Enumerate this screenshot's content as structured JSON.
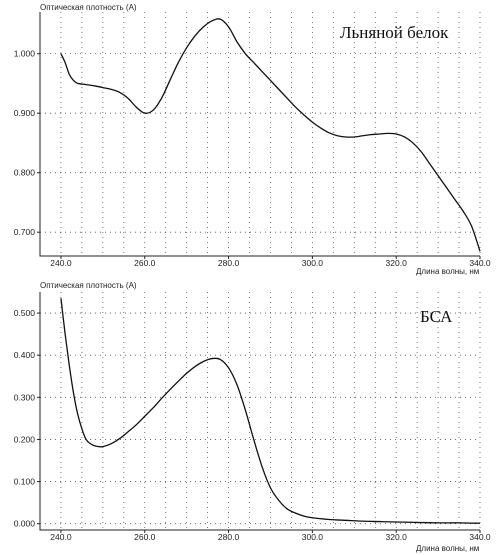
{
  "chart_data": [
    {
      "type": "line",
      "title": "Льняной белок",
      "ylabel": "Оптическая плотность (A)",
      "xlabel": "Длина волны, нм",
      "xlim": [
        235,
        340
      ],
      "ylim": [
        0.66,
        1.07
      ],
      "x_ticks": [
        240,
        260,
        280,
        300,
        320,
        340
      ],
      "x_tick_labels": [
        "240.0",
        "260.0",
        "280.0",
        "300.0",
        "320.0",
        "340.0"
      ],
      "y_ticks": [
        0.7,
        0.8,
        0.9,
        1.0
      ],
      "y_tick_labels": [
        "0.700",
        "0.800",
        "0.900",
        "1.000"
      ],
      "x_gridlines": [
        240,
        245,
        250,
        255,
        260,
        265,
        270,
        275,
        280,
        285,
        290,
        295,
        300,
        305,
        310,
        315,
        320,
        325,
        330,
        335,
        340
      ],
      "y_gridlines": [
        0.7,
        0.8,
        0.9,
        1.0
      ],
      "grid": true,
      "series": [
        {
          "x": [
            240,
            241,
            242,
            243,
            244,
            246,
            248,
            250,
            252,
            254,
            256,
            258,
            260,
            262,
            264,
            266,
            268,
            270,
            272,
            274,
            276,
            278,
            280,
            282,
            284,
            286,
            288,
            290,
            292,
            294,
            296,
            298,
            300,
            302,
            304,
            306,
            308,
            310,
            312,
            314,
            316,
            318,
            320,
            322,
            324,
            326,
            328,
            330,
            332,
            334,
            336,
            338,
            340
          ],
          "y": [
            1.0,
            0.985,
            0.965,
            0.955,
            0.95,
            0.948,
            0.946,
            0.943,
            0.94,
            0.935,
            0.925,
            0.91,
            0.9,
            0.905,
            0.925,
            0.955,
            0.985,
            1.01,
            1.03,
            1.045,
            1.055,
            1.058,
            1.045,
            1.02,
            1.0,
            0.985,
            0.97,
            0.955,
            0.94,
            0.925,
            0.91,
            0.897,
            0.885,
            0.875,
            0.867,
            0.862,
            0.86,
            0.86,
            0.862,
            0.864,
            0.865,
            0.866,
            0.865,
            0.86,
            0.85,
            0.835,
            0.815,
            0.795,
            0.775,
            0.755,
            0.735,
            0.71,
            0.668
          ]
        }
      ]
    },
    {
      "type": "line",
      "title": "БСА",
      "ylabel": "Оптическая плотность (A)",
      "xlabel": "Длина волны, нм",
      "xlim": [
        235,
        340
      ],
      "ylim": [
        -0.015,
        0.55
      ],
      "x_ticks": [
        240,
        260,
        280,
        300,
        320,
        340
      ],
      "x_tick_labels": [
        "240.0",
        "260.0",
        "280.0",
        "300.0",
        "320.0",
        "340.0"
      ],
      "y_ticks": [
        0.0,
        0.1,
        0.2,
        0.3,
        0.4,
        0.5
      ],
      "y_tick_labels": [
        "0.000",
        "0.100",
        "0.200",
        "0.300",
        "0.400",
        "0.500"
      ],
      "x_gridlines": [
        240,
        245,
        250,
        255,
        260,
        265,
        270,
        275,
        280,
        285,
        290,
        295,
        300,
        305,
        310,
        315,
        320,
        325,
        330,
        335,
        340
      ],
      "y_gridlines": [
        0.0,
        0.1,
        0.2,
        0.3,
        0.4,
        0.5
      ],
      "grid": true,
      "series": [
        {
          "x": [
            240,
            241,
            242,
            243,
            244,
            245,
            246,
            247,
            248,
            249,
            250,
            252,
            254,
            256,
            258,
            260,
            262,
            264,
            266,
            268,
            270,
            272,
            274,
            276,
            278,
            280,
            282,
            284,
            286,
            288,
            290,
            292,
            294,
            296,
            298,
            300,
            304,
            308,
            312,
            316,
            320,
            325,
            330,
            335,
            340
          ],
          "y": [
            0.535,
            0.45,
            0.375,
            0.31,
            0.26,
            0.225,
            0.2,
            0.19,
            0.185,
            0.183,
            0.183,
            0.19,
            0.202,
            0.218,
            0.235,
            0.255,
            0.275,
            0.297,
            0.318,
            0.338,
            0.357,
            0.373,
            0.385,
            0.392,
            0.39,
            0.37,
            0.33,
            0.27,
            0.2,
            0.135,
            0.085,
            0.055,
            0.035,
            0.025,
            0.018,
            0.014,
            0.01,
            0.008,
            0.006,
            0.005,
            0.004,
            0.003,
            0.002,
            0.002,
            0.001
          ]
        }
      ]
    }
  ]
}
